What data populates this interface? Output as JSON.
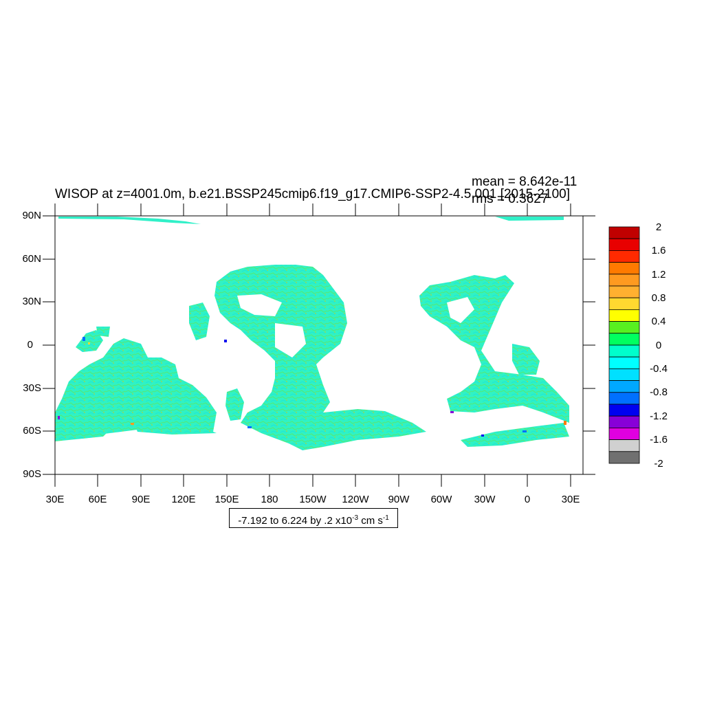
{
  "map": {
    "title": "WISOP at z=4001.0m, b.e21.BSSP245cmip6.f19_g17.CMIP6-SSP2-4.5.001 [2015-2100]",
    "mean_text": "mean = 8.642e-11",
    "rms_text": "rms = 0.3627",
    "contour_prefix": "-7.192 to 6.224 by .2 x10",
    "contour_exp": "-3",
    "contour_unit": " cm s",
    "contour_unit_exp": "-1",
    "lat_labels": [
      "90N",
      "60N",
      "30N",
      "0",
      "30S",
      "60S",
      "90S"
    ],
    "lon_labels": [
      "30E",
      "60E",
      "90E",
      "120E",
      "150E",
      "180",
      "150W",
      "120W",
      "90W",
      "60W",
      "30W",
      "0",
      "30E"
    ]
  },
  "colorbar": {
    "labels": [
      "2",
      "1.6",
      "1.2",
      "0.8",
      "0.4",
      "0",
      "-0.4",
      "-0.8",
      "-1.2",
      "-1.6",
      "-2"
    ],
    "colors": [
      "#c00000",
      "#e80000",
      "#ff2a00",
      "#ff7a00",
      "#ff9a20",
      "#ffb030",
      "#ffd830",
      "#ffff00",
      "#58f020",
      "#00ff60",
      "#00ffcc",
      "#00ffff",
      "#00e0ff",
      "#00a8ff",
      "#0070ff",
      "#0000f0",
      "#8800d8",
      "#e000e0",
      "#d0d0d0",
      "#707070"
    ]
  },
  "style": {
    "ocean_fill": "#30f0c0",
    "land_fill": "#ffffff"
  }
}
